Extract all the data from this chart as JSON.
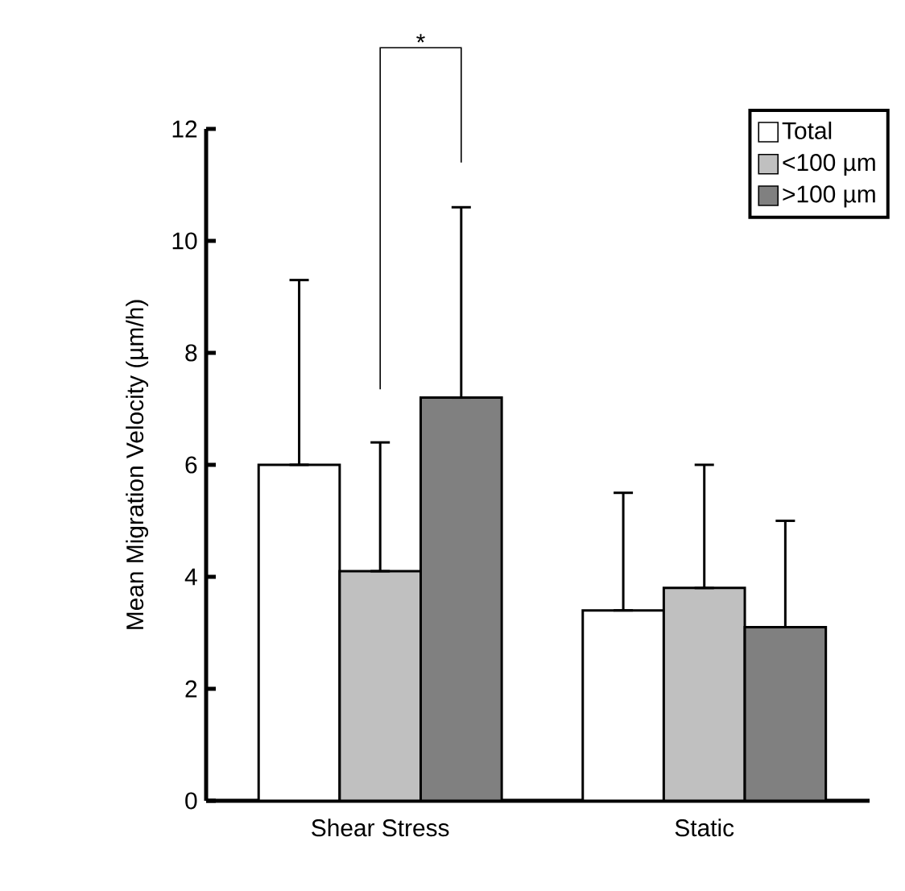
{
  "chart_data": {
    "type": "bar",
    "ylabel": "Mean Migration Velocity (µm/h)",
    "categories": [
      "Shear Stress",
      "Static"
    ],
    "series": [
      {
        "name": "Total",
        "color": "#ffffff",
        "values": [
          6.0,
          3.4
        ],
        "errors": [
          [
            6.0,
            9.3
          ],
          [
            3.4,
            5.5
          ]
        ]
      },
      {
        "name": "<100 µm",
        "color": "#c0c0c0",
        "values": [
          4.1,
          3.8
        ],
        "errors": [
          [
            4.1,
            6.4
          ],
          [
            3.8,
            6.0
          ]
        ]
      },
      {
        "name": ">100 µm",
        "color": "#808080",
        "values": [
          7.2,
          3.1
        ],
        "errors": [
          [
            7.2,
            10.6
          ],
          [
            3.1,
            5.0
          ]
        ]
      }
    ],
    "ylim": [
      0,
      12
    ],
    "yticks": [
      0,
      2,
      4,
      6,
      8,
      10,
      12
    ],
    "legend": "top right",
    "annotations": [
      "*"
    ]
  }
}
